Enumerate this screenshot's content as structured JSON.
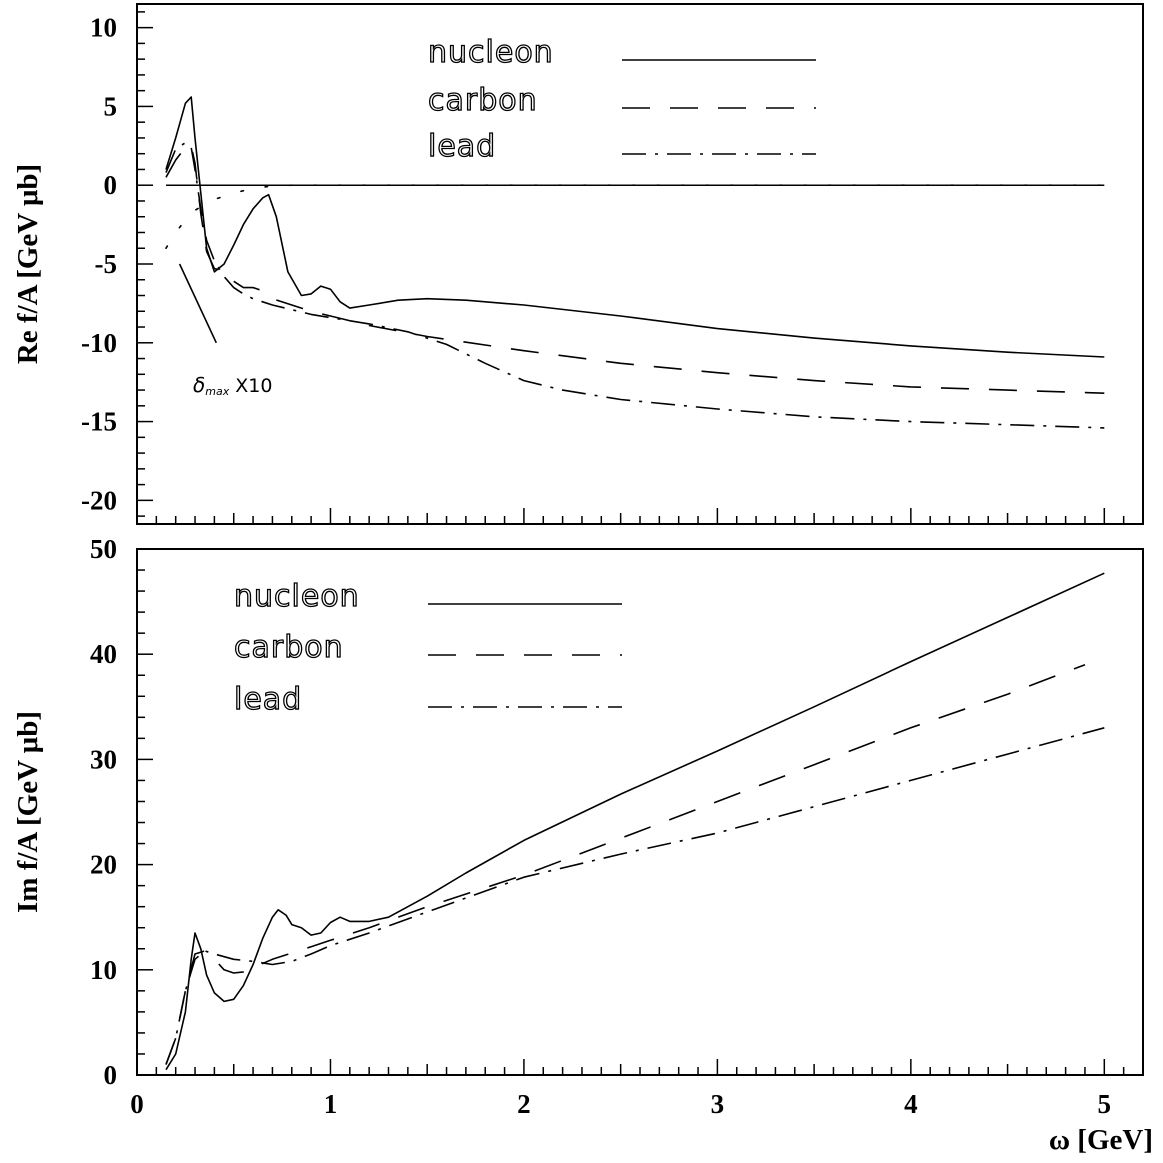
{
  "chart_data": [
    {
      "type": "line",
      "ylabel": "Re f/A [GeV μb]",
      "xlabel": "",
      "xlim": [
        0,
        5.2
      ],
      "ylim": [
        -21.5,
        11.5
      ],
      "x_ticks": [
        0,
        1,
        2,
        3,
        4,
        5
      ],
      "x_tick_labels": [],
      "y_ticks": [
        10,
        5,
        0,
        -5,
        -10,
        -15,
        -20
      ],
      "y_tick_labels": [
        "10",
        "5",
        "0",
        "-5",
        "-10",
        "-15",
        "-20"
      ],
      "legend_position": "top-center",
      "annotation": {
        "symbol": "δ",
        "subscript": "max",
        "text": " X10"
      },
      "series": [
        {
          "name": "nucleon",
          "style": "solid",
          "x": [
            0.15,
            0.2,
            0.25,
            0.28,
            0.3,
            0.33,
            0.36,
            0.4,
            0.45,
            0.5,
            0.55,
            0.6,
            0.65,
            0.68,
            0.72,
            0.78,
            0.85,
            0.9,
            0.95,
            1.0,
            1.05,
            1.1,
            1.2,
            1.35,
            1.5,
            1.7,
            2.0,
            2.5,
            3.0,
            3.5,
            4.0,
            4.5,
            5.0
          ],
          "values": [
            1.0,
            3.0,
            5.2,
            5.6,
            3.0,
            -0.5,
            -4.0,
            -5.5,
            -5.0,
            -3.8,
            -2.5,
            -1.5,
            -0.8,
            -0.6,
            -2.0,
            -5.5,
            -7.0,
            -6.9,
            -6.4,
            -6.6,
            -7.4,
            -7.8,
            -7.6,
            -7.3,
            -7.2,
            -7.3,
            -7.6,
            -8.3,
            -9.1,
            -9.7,
            -10.2,
            -10.6,
            -10.9
          ]
        },
        {
          "name": "carbon",
          "style": "dashed",
          "x": [
            0.15,
            0.2,
            0.25,
            0.28,
            0.3,
            0.33,
            0.36,
            0.4,
            0.45,
            0.5,
            0.55,
            0.6,
            0.65,
            0.7,
            0.8,
            0.9,
            1.0,
            1.2,
            1.5,
            2.0,
            2.5,
            3.0,
            3.5,
            4.0,
            4.5,
            5.0
          ],
          "values": [
            0.5,
            1.6,
            2.4,
            2.5,
            1.4,
            -1.8,
            -4.2,
            -5.3,
            -5.4,
            -6.1,
            -6.5,
            -6.5,
            -6.7,
            -7.2,
            -7.6,
            -8.0,
            -8.3,
            -8.9,
            -9.6,
            -10.5,
            -11.3,
            -11.9,
            -12.4,
            -12.8,
            -13.0,
            -13.2
          ]
        },
        {
          "name": "lead",
          "style": "dashdot",
          "x": [
            0.15,
            0.2,
            0.25,
            0.28,
            0.3,
            0.33,
            0.36,
            0.4,
            0.45,
            0.5,
            0.55,
            0.6,
            0.7,
            0.8,
            0.9,
            1.0,
            1.2,
            1.4,
            1.6,
            1.8,
            2.0,
            2.2,
            2.5,
            3.0,
            3.5,
            4.0,
            4.5,
            5.0
          ],
          "values": [
            0.8,
            2.3,
            2.7,
            2.4,
            1.0,
            -1.5,
            -3.5,
            -4.8,
            -5.8,
            -6.5,
            -6.9,
            -7.2,
            -7.6,
            -7.9,
            -8.2,
            -8.4,
            -8.8,
            -9.3,
            -10.1,
            -11.3,
            -12.4,
            -13.0,
            -13.6,
            -14.2,
            -14.7,
            -15.0,
            -15.2,
            -15.4
          ]
        },
        {
          "name": "",
          "style": "dotted",
          "x": [
            0.15,
            0.2,
            0.25,
            0.3,
            0.35,
            0.4,
            0.5,
            0.6,
            0.7,
            0.8,
            0.9,
            1.0,
            1.5,
            2.0,
            3.0,
            4.0,
            5.0
          ],
          "values": [
            -4.0,
            -3.0,
            -2.2,
            -1.6,
            -1.2,
            -0.9,
            -0.5,
            -0.2,
            -0.05,
            0,
            0,
            0,
            0,
            0,
            0,
            0,
            0
          ]
        },
        {
          "name": "δmax X10",
          "style": "solid",
          "x": [
            0.22,
            0.41
          ],
          "values": [
            -5.0,
            -10.0
          ]
        }
      ]
    },
    {
      "type": "line",
      "xlabel": "ω [GeV]",
      "ylabel": "Im f/A [GeV μb]",
      "xlim": [
        0,
        5.2
      ],
      "ylim": [
        0,
        50
      ],
      "x_ticks": [
        0,
        1,
        2,
        3,
        4,
        5
      ],
      "x_tick_labels": [
        "0",
        "1",
        "2",
        "3",
        "4",
        "5"
      ],
      "y_ticks": [
        0,
        10,
        20,
        30,
        40,
        50
      ],
      "y_tick_labels": [
        "0",
        "10",
        "20",
        "30",
        "40",
        "50"
      ],
      "legend_position": "top-left",
      "series": [
        {
          "name": "nucleon",
          "style": "solid",
          "x": [
            0.15,
            0.2,
            0.25,
            0.28,
            0.3,
            0.33,
            0.36,
            0.4,
            0.45,
            0.5,
            0.55,
            0.6,
            0.65,
            0.7,
            0.73,
            0.77,
            0.8,
            0.85,
            0.9,
            0.95,
            1.0,
            1.05,
            1.1,
            1.2,
            1.3,
            1.5,
            1.7,
            2.0,
            2.5,
            3.0,
            3.5,
            4.0,
            4.5,
            5.0
          ],
          "values": [
            0.5,
            2.0,
            6.0,
            11.0,
            13.5,
            12.0,
            9.5,
            7.8,
            7.0,
            7.2,
            8.5,
            10.5,
            13.0,
            15.0,
            15.7,
            15.2,
            14.3,
            14.0,
            13.3,
            13.5,
            14.5,
            15.0,
            14.6,
            14.6,
            15.0,
            17.0,
            19.2,
            22.3,
            26.7,
            30.8,
            35.0,
            39.3,
            43.5,
            47.7
          ]
        },
        {
          "name": "carbon",
          "style": "dashed",
          "x": [
            0.15,
            0.2,
            0.25,
            0.3,
            0.35,
            0.4,
            0.45,
            0.5,
            0.55,
            0.6,
            0.7,
            0.8,
            0.9,
            1.0,
            1.2,
            1.5,
            2.0,
            2.5,
            3.0,
            3.5,
            4.0,
            4.5,
            4.9
          ],
          "values": [
            1.0,
            3.5,
            8.0,
            11.5,
            11.8,
            11.0,
            10.0,
            9.7,
            9.8,
            10.2,
            11.0,
            11.6,
            12.2,
            12.8,
            14.0,
            16.0,
            19.0,
            22.5,
            26.0,
            29.5,
            33.0,
            36.2,
            39.0
          ]
        },
        {
          "name": "lead",
          "style": "dashdot",
          "x": [
            0.15,
            0.2,
            0.25,
            0.3,
            0.35,
            0.4,
            0.5,
            0.6,
            0.7,
            0.8,
            0.9,
            1.0,
            1.2,
            1.5,
            2.0,
            2.5,
            3.0,
            3.5,
            4.0,
            4.5,
            5.0
          ],
          "values": [
            1.0,
            3.5,
            8.0,
            11.0,
            11.8,
            11.5,
            11.0,
            10.8,
            10.5,
            10.8,
            11.5,
            12.3,
            13.5,
            15.5,
            18.8,
            21.0,
            23.0,
            25.5,
            28.0,
            30.5,
            33.0
          ]
        }
      ]
    }
  ]
}
